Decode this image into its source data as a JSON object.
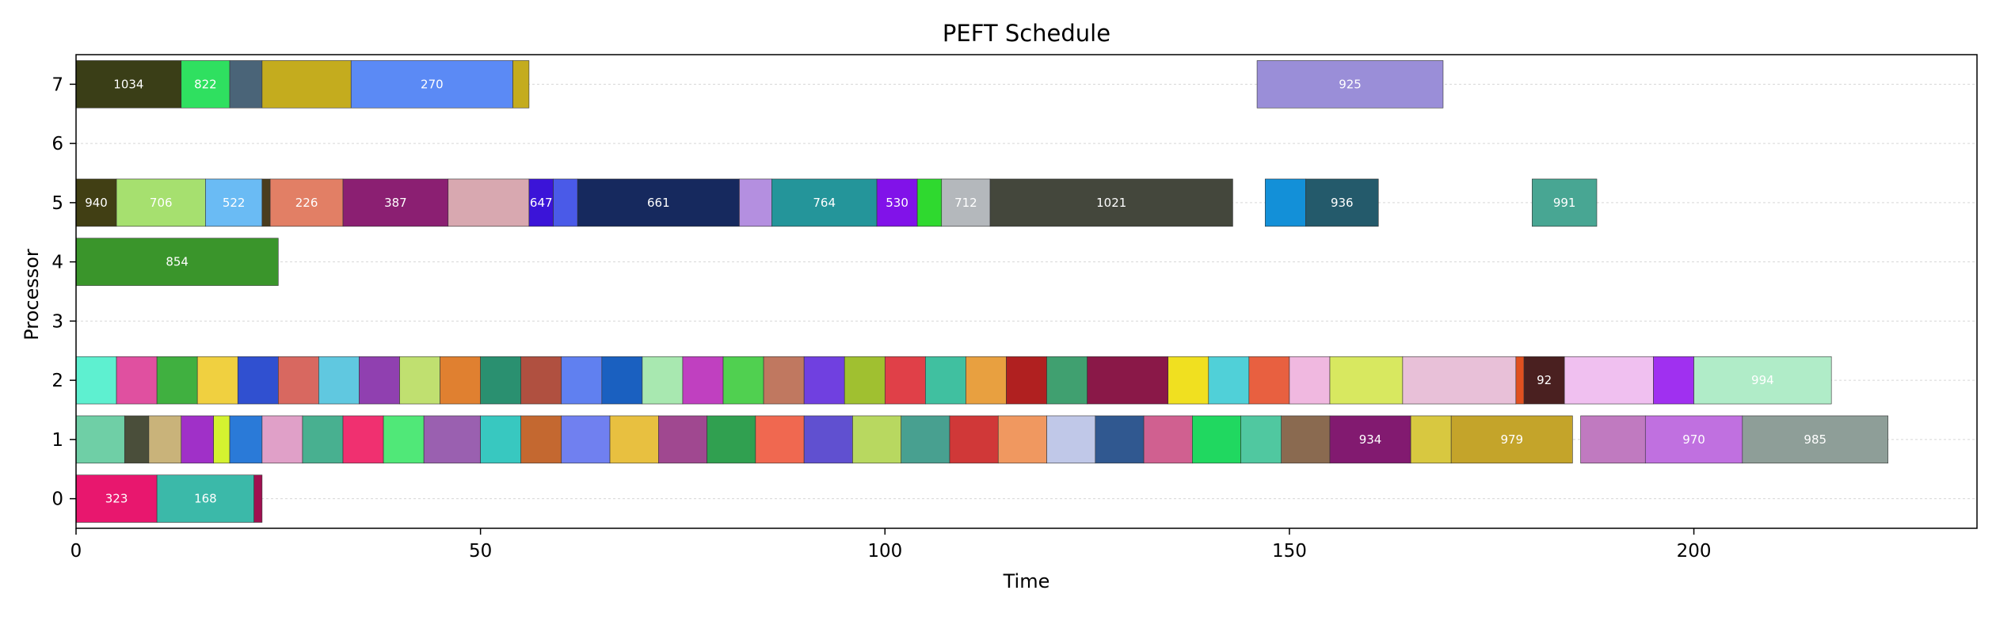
{
  "chart_data": {
    "type": "gantt",
    "title": "PEFT Schedule",
    "xlabel": "Time",
    "ylabel": "Processor",
    "xlim": [
      0,
      235
    ],
    "ylim": [
      -0.5,
      7.5
    ],
    "x_ticks": [
      0,
      50,
      100,
      150,
      200
    ],
    "y_ticks": [
      0,
      1,
      2,
      3,
      4,
      5,
      6,
      7
    ],
    "grid": "horizontal-dotted",
    "tasks": [
      {
        "processor": 0,
        "start": 0,
        "end": 10,
        "label": "323",
        "color": "#e8176e"
      },
      {
        "processor": 0,
        "start": 10,
        "end": 22,
        "label": "168",
        "color": "#3bb9a9"
      },
      {
        "processor": 0,
        "start": 22,
        "end": 23,
        "label": "",
        "color": "#a01050"
      },
      {
        "processor": 4,
        "start": 0,
        "end": 25,
        "label": "854",
        "color": "#3a952b"
      },
      {
        "processor": 5,
        "start": 0,
        "end": 5,
        "label": "940",
        "color": "#413f14"
      },
      {
        "processor": 5,
        "start": 5,
        "end": 16,
        "label": "706",
        "color": "#a6e06f"
      },
      {
        "processor": 5,
        "start": 16,
        "end": 23,
        "label": "522",
        "color": "#6abbf4"
      },
      {
        "processor": 5,
        "start": 23,
        "end": 24,
        "label": "",
        "color": "#4a3d1f"
      },
      {
        "processor": 5,
        "start": 24,
        "end": 33,
        "label": "226",
        "color": "#e27f65"
      },
      {
        "processor": 5,
        "start": 33,
        "end": 46,
        "label": "387",
        "color": "#8b1f72"
      },
      {
        "processor": 5,
        "start": 46,
        "end": 56,
        "label": "",
        "color": "#d8a8b0"
      },
      {
        "processor": 5,
        "start": 56,
        "end": 59,
        "label": "647",
        "color": "#3b14d8"
      },
      {
        "processor": 5,
        "start": 59,
        "end": 62,
        "label": "",
        "color": "#4a5ae8"
      },
      {
        "processor": 5,
        "start": 62,
        "end": 82,
        "label": "661",
        "color": "#16295e"
      },
      {
        "processor": 5,
        "start": 82,
        "end": 86,
        "label": "",
        "color": "#b48fe0"
      },
      {
        "processor": 5,
        "start": 86,
        "end": 99,
        "label": "764",
        "color": "#24959a"
      },
      {
        "processor": 5,
        "start": 99,
        "end": 104,
        "label": "530",
        "color": "#8112e9"
      },
      {
        "processor": 5,
        "start": 104,
        "end": 107,
        "label": "",
        "color": "#2fd92f"
      },
      {
        "processor": 5,
        "start": 107,
        "end": 113,
        "label": "712",
        "color": "#b4b8bc"
      },
      {
        "processor": 5,
        "start": 113,
        "end": 143,
        "label": "1021",
        "color": "#44473c"
      },
      {
        "processor": 5,
        "start": 147,
        "end": 152,
        "label": "",
        "color": "#1390d8"
      },
      {
        "processor": 5,
        "start": 152,
        "end": 161,
        "label": "936",
        "color": "#245a6b"
      },
      {
        "processor": 5,
        "start": 180,
        "end": 188,
        "label": "991",
        "color": "#48a693"
      },
      {
        "processor": 7,
        "start": 0,
        "end": 13,
        "label": "1034",
        "color": "#3a3e17"
      },
      {
        "processor": 7,
        "start": 13,
        "end": 19,
        "label": "822",
        "color": "#2fe060"
      },
      {
        "processor": 7,
        "start": 19,
        "end": 23,
        "label": "",
        "color": "#4a6478"
      },
      {
        "processor": 7,
        "start": 23,
        "end": 34,
        "label": "",
        "color": "#c4ac1e"
      },
      {
        "processor": 7,
        "start": 34,
        "end": 54,
        "label": "270",
        "color": "#5b8af5"
      },
      {
        "processor": 7,
        "start": 54,
        "end": 56,
        "label": "",
        "color": "#c4ac1e"
      },
      {
        "processor": 7,
        "start": 146,
        "end": 169,
        "label": "925",
        "color": "#9a8ed8"
      },
      {
        "processor": 1,
        "start": 0,
        "end": 6,
        "label": "",
        "color": "#6fcfa6"
      },
      {
        "processor": 1,
        "start": 6,
        "end": 9,
        "label": "",
        "color": "#4a4e3a"
      },
      {
        "processor": 1,
        "start": 9,
        "end": 13,
        "label": "",
        "color": "#c9b37a"
      },
      {
        "processor": 1,
        "start": 13,
        "end": 17,
        "label": "",
        "color": "#a030c8"
      },
      {
        "processor": 1,
        "start": 17,
        "end": 19,
        "label": "",
        "color": "#d4f230"
      },
      {
        "processor": 1,
        "start": 19,
        "end": 23,
        "label": "",
        "color": "#2a7ad8"
      },
      {
        "processor": 1,
        "start": 23,
        "end": 28,
        "label": "",
        "color": "#e0a0c8"
      },
      {
        "processor": 1,
        "start": 28,
        "end": 33,
        "label": "",
        "color": "#48b090"
      },
      {
        "processor": 1,
        "start": 33,
        "end": 38,
        "label": "",
        "color": "#f03070"
      },
      {
        "processor": 1,
        "start": 38,
        "end": 43,
        "label": "",
        "color": "#50e878"
      },
      {
        "processor": 1,
        "start": 43,
        "end": 50,
        "label": "",
        "color": "#9a60b0"
      },
      {
        "processor": 1,
        "start": 50,
        "end": 55,
        "label": "",
        "color": "#38c8c0"
      },
      {
        "processor": 1,
        "start": 55,
        "end": 60,
        "label": "",
        "color": "#c46830"
      },
      {
        "processor": 1,
        "start": 60,
        "end": 66,
        "label": "",
        "color": "#7080f0"
      },
      {
        "processor": 1,
        "start": 66,
        "end": 72,
        "label": "",
        "color": "#e8c040"
      },
      {
        "processor": 1,
        "start": 72,
        "end": 78,
        "label": "",
        "color": "#a04890"
      },
      {
        "processor": 1,
        "start": 78,
        "end": 84,
        "label": "",
        "color": "#30a050"
      },
      {
        "processor": 1,
        "start": 84,
        "end": 90,
        "label": "",
        "color": "#f06850"
      },
      {
        "processor": 1,
        "start": 90,
        "end": 96,
        "label": "",
        "color": "#6050d0"
      },
      {
        "processor": 1,
        "start": 96,
        "end": 102,
        "label": "",
        "color": "#b8d860"
      },
      {
        "processor": 1,
        "start": 102,
        "end": 108,
        "label": "",
        "color": "#48a090"
      },
      {
        "processor": 1,
        "start": 108,
        "end": 114,
        "label": "",
        "color": "#d03838"
      },
      {
        "processor": 1,
        "start": 114,
        "end": 120,
        "label": "",
        "color": "#f09860"
      },
      {
        "processor": 1,
        "start": 120,
        "end": 126,
        "label": "",
        "color": "#c0c8e8"
      },
      {
        "processor": 1,
        "start": 126,
        "end": 132,
        "label": "",
        "color": "#305890"
      },
      {
        "processor": 1,
        "start": 132,
        "end": 138,
        "label": "",
        "color": "#d06090"
      },
      {
        "processor": 1,
        "start": 138,
        "end": 144,
        "label": "",
        "color": "#20d860"
      },
      {
        "processor": 1,
        "start": 144,
        "end": 149,
        "label": "",
        "color": "#50c8a0"
      },
      {
        "processor": 1,
        "start": 149,
        "end": 155,
        "label": "",
        "color": "#8a6a50"
      },
      {
        "processor": 1,
        "start": 155,
        "end": 165,
        "label": "934",
        "color": "#821a70"
      },
      {
        "processor": 1,
        "start": 165,
        "end": 170,
        "label": "",
        "color": "#d8c840"
      },
      {
        "processor": 1,
        "start": 170,
        "end": 185,
        "label": "979",
        "color": "#c4a42a"
      },
      {
        "processor": 1,
        "start": 186,
        "end": 194,
        "label": "",
        "color": "#c07ac0"
      },
      {
        "processor": 1,
        "start": 194,
        "end": 206,
        "label": "970",
        "color": "#c070e0"
      },
      {
        "processor": 1,
        "start": 206,
        "end": 224,
        "label": "985",
        "color": "#8e9e98"
      },
      {
        "processor": 2,
        "start": 0,
        "end": 5,
        "label": "",
        "color": "#5ef0d0"
      },
      {
        "processor": 2,
        "start": 5,
        "end": 10,
        "label": "",
        "color": "#e050a0"
      },
      {
        "processor": 2,
        "start": 10,
        "end": 15,
        "label": "",
        "color": "#40b040"
      },
      {
        "processor": 2,
        "start": 15,
        "end": 20,
        "label": "",
        "color": "#f0d040"
      },
      {
        "processor": 2,
        "start": 20,
        "end": 25,
        "label": "",
        "color": "#3050d0"
      },
      {
        "processor": 2,
        "start": 25,
        "end": 30,
        "label": "",
        "color": "#d86860"
      },
      {
        "processor": 2,
        "start": 30,
        "end": 35,
        "label": "",
        "color": "#60c8e0"
      },
      {
        "processor": 2,
        "start": 35,
        "end": 40,
        "label": "",
        "color": "#9040b0"
      },
      {
        "processor": 2,
        "start": 40,
        "end": 45,
        "label": "",
        "color": "#c0e070"
      },
      {
        "processor": 2,
        "start": 45,
        "end": 50,
        "label": "",
        "color": "#e08030"
      },
      {
        "processor": 2,
        "start": 50,
        "end": 55,
        "label": "",
        "color": "#2a9070"
      },
      {
        "processor": 2,
        "start": 55,
        "end": 60,
        "label": "",
        "color": "#b05040"
      },
      {
        "processor": 2,
        "start": 60,
        "end": 65,
        "label": "",
        "color": "#6080f0"
      },
      {
        "processor": 2,
        "start": 65,
        "end": 70,
        "label": "",
        "color": "#1a60c0"
      },
      {
        "processor": 2,
        "start": 70,
        "end": 75,
        "label": "",
        "color": "#a8e8b0"
      },
      {
        "processor": 2,
        "start": 75,
        "end": 80,
        "label": "",
        "color": "#c040c0"
      },
      {
        "processor": 2,
        "start": 80,
        "end": 85,
        "label": "",
        "color": "#50d050"
      },
      {
        "processor": 2,
        "start": 85,
        "end": 90,
        "label": "",
        "color": "#c07860"
      },
      {
        "processor": 2,
        "start": 90,
        "end": 95,
        "label": "",
        "color": "#7040e0"
      },
      {
        "processor": 2,
        "start": 95,
        "end": 100,
        "label": "",
        "color": "#a0c030"
      },
      {
        "processor": 2,
        "start": 100,
        "end": 105,
        "label": "",
        "color": "#e04048"
      },
      {
        "processor": 2,
        "start": 105,
        "end": 110,
        "label": "",
        "color": "#40c0a0"
      },
      {
        "processor": 2,
        "start": 110,
        "end": 115,
        "label": "",
        "color": "#e8a040"
      },
      {
        "processor": 2,
        "start": 115,
        "end": 120,
        "label": "",
        "color": "#b02020"
      },
      {
        "processor": 2,
        "start": 120,
        "end": 125,
        "label": "",
        "color": "#40a070"
      },
      {
        "processor": 2,
        "start": 125,
        "end": 135,
        "label": "",
        "color": "#8a1848"
      },
      {
        "processor": 2,
        "start": 135,
        "end": 140,
        "label": "",
        "color": "#f0e020"
      },
      {
        "processor": 2,
        "start": 140,
        "end": 145,
        "label": "",
        "color": "#50d0d8"
      },
      {
        "processor": 2,
        "start": 145,
        "end": 150,
        "label": "",
        "color": "#e86040"
      },
      {
        "processor": 2,
        "start": 150,
        "end": 155,
        "label": "",
        "color": "#f0b8e0"
      },
      {
        "processor": 2,
        "start": 155,
        "end": 164,
        "label": "",
        "color": "#d8e860"
      },
      {
        "processor": 2,
        "start": 164,
        "end": 178,
        "label": "",
        "color": "#e8c0d8"
      },
      {
        "processor": 2,
        "start": 178,
        "end": 179,
        "label": "",
        "color": "#e05020"
      },
      {
        "processor": 2,
        "start": 179,
        "end": 184,
        "label": "92",
        "color": "#4a2020"
      },
      {
        "processor": 2,
        "start": 184,
        "end": 195,
        "label": "",
        "color": "#f0c0f0"
      },
      {
        "processor": 2,
        "start": 195,
        "end": 200,
        "label": "",
        "color": "#a030f0"
      },
      {
        "processor": 2,
        "start": 200,
        "end": 217,
        "label": "994",
        "color": "#b0ecc8"
      }
    ]
  }
}
